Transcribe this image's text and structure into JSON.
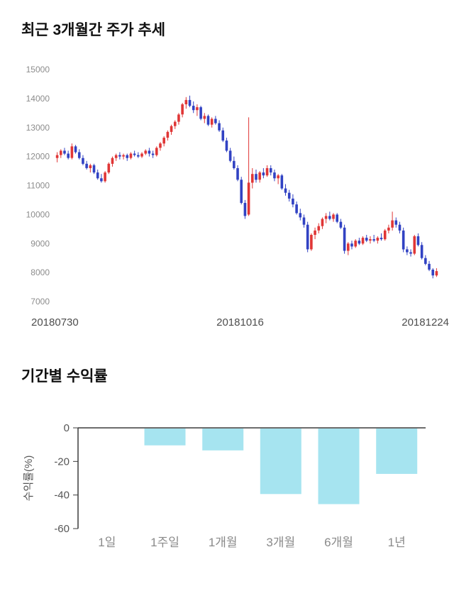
{
  "price_section": {
    "title": "최근 3개월간 주가 추세",
    "x_labels": [
      "20180730",
      "20181016",
      "20181224"
    ]
  },
  "returns_section": {
    "title": "기간별 수익률"
  },
  "chart_data": [
    {
      "type": "candlestick",
      "title": "최근 3개월간 주가 추세",
      "ylim": [
        7000,
        15000
      ],
      "yticks": [
        15000,
        14000,
        13000,
        12000,
        11000,
        10000,
        9000,
        8000,
        7000
      ],
      "x_axis_labels": [
        "20180730",
        "20181016",
        "20181224"
      ],
      "up_color": "#e03636",
      "down_color": "#3142c3",
      "ohlc_format": [
        "open",
        "high",
        "low",
        "close"
      ],
      "ohlc": [
        [
          11950,
          12150,
          11800,
          12050
        ],
        [
          12050,
          12250,
          11950,
          12200
        ],
        [
          12200,
          12300,
          12050,
          12100
        ],
        [
          12100,
          12200,
          11900,
          11950
        ],
        [
          11950,
          12450,
          11900,
          12350
        ],
        [
          12350,
          12400,
          12100,
          12150
        ],
        [
          12150,
          12250,
          11900,
          11950
        ],
        [
          11950,
          12050,
          11700,
          11750
        ],
        [
          11750,
          11850,
          11550,
          11600
        ],
        [
          11600,
          11750,
          11450,
          11700
        ],
        [
          11700,
          11750,
          11400,
          11450
        ],
        [
          11450,
          11550,
          11200,
          11250
        ],
        [
          11250,
          11400,
          11100,
          11150
        ],
        [
          11150,
          11500,
          11100,
          11450
        ],
        [
          11450,
          11800,
          11400,
          11750
        ],
        [
          11750,
          12000,
          11650,
          11950
        ],
        [
          11950,
          12100,
          11850,
          12050
        ],
        [
          12050,
          12150,
          11900,
          12000
        ],
        [
          12000,
          12100,
          11900,
          12050
        ],
        [
          12050,
          12100,
          11850,
          11950
        ],
        [
          11950,
          12150,
          11900,
          12100
        ],
        [
          12100,
          12200,
          12000,
          12050
        ],
        [
          12050,
          12150,
          11950,
          12000
        ],
        [
          12000,
          12150,
          11950,
          12100
        ],
        [
          12100,
          12250,
          12050,
          12200
        ],
        [
          12200,
          12300,
          12000,
          12100
        ],
        [
          12100,
          12200,
          11950,
          12050
        ],
        [
          12050,
          12350,
          12000,
          12300
        ],
        [
          12300,
          12500,
          12200,
          12450
        ],
        [
          12450,
          12700,
          12350,
          12650
        ],
        [
          12650,
          12900,
          12550,
          12850
        ],
        [
          12850,
          13100,
          12750,
          13050
        ],
        [
          13050,
          13250,
          12950,
          13200
        ],
        [
          13200,
          13500,
          13100,
          13450
        ],
        [
          13450,
          13850,
          13350,
          13800
        ],
        [
          13800,
          14050,
          13650,
          13950
        ],
        [
          13950,
          14100,
          13700,
          13750
        ],
        [
          13750,
          13900,
          13500,
          13600
        ],
        [
          13600,
          13800,
          13400,
          13700
        ],
        [
          13700,
          13750,
          13250,
          13300
        ],
        [
          13300,
          13500,
          13150,
          13400
        ],
        [
          13400,
          13450,
          13050,
          13100
        ],
        [
          13100,
          13350,
          13000,
          13300
        ],
        [
          13300,
          13400,
          13100,
          13150
        ],
        [
          13150,
          13250,
          12850,
          12900
        ],
        [
          12900,
          13000,
          12500,
          12550
        ],
        [
          12550,
          12650,
          12150,
          12200
        ],
        [
          12200,
          12300,
          11800,
          11850
        ],
        [
          11850,
          12000,
          11550,
          11600
        ],
        [
          11600,
          11700,
          11150,
          11200
        ],
        [
          11200,
          11300,
          10350,
          10400
        ],
        [
          10400,
          10500,
          9850,
          9950
        ],
        [
          10000,
          13350,
          9950,
          11100
        ],
        [
          11100,
          11600,
          10900,
          11400
        ],
        [
          11400,
          11550,
          11100,
          11200
        ],
        [
          11200,
          11500,
          11100,
          11450
        ],
        [
          11450,
          11600,
          11250,
          11350
        ],
        [
          11350,
          11700,
          11300,
          11600
        ],
        [
          11600,
          11700,
          11350,
          11450
        ],
        [
          11450,
          11550,
          11150,
          11250
        ],
        [
          11250,
          11400,
          11050,
          11350
        ],
        [
          11350,
          11400,
          10850,
          10900
        ],
        [
          10900,
          11050,
          10650,
          10750
        ],
        [
          10750,
          10850,
          10450,
          10550
        ],
        [
          10550,
          10700,
          10250,
          10350
        ],
        [
          10350,
          10450,
          10000,
          10050
        ],
        [
          10050,
          10200,
          9800,
          9900
        ],
        [
          9900,
          10000,
          9550,
          9650
        ],
        [
          9650,
          9750,
          8700,
          8800
        ],
        [
          8800,
          9350,
          8750,
          9300
        ],
        [
          9300,
          9550,
          9150,
          9450
        ],
        [
          9450,
          9700,
          9350,
          9600
        ],
        [
          9600,
          9900,
          9500,
          9850
        ],
        [
          9850,
          10050,
          9700,
          9950
        ],
        [
          9950,
          10100,
          9800,
          9850
        ],
        [
          9850,
          10050,
          9750,
          10000
        ],
        [
          10000,
          10050,
          9700,
          9750
        ],
        [
          9750,
          9850,
          9500,
          9550
        ],
        [
          9550,
          9650,
          8650,
          8750
        ],
        [
          8750,
          9050,
          8600,
          9000
        ],
        [
          9000,
          9100,
          8800,
          8900
        ],
        [
          8900,
          9150,
          8850,
          9100
        ],
        [
          9100,
          9200,
          8950,
          9000
        ],
        [
          9000,
          9250,
          8950,
          9200
        ],
        [
          9200,
          9300,
          9050,
          9100
        ],
        [
          9100,
          9250,
          9000,
          9150
        ],
        [
          9150,
          9300,
          9050,
          9100
        ],
        [
          9100,
          9250,
          9000,
          9200
        ],
        [
          9200,
          9350,
          9100,
          9150
        ],
        [
          9150,
          9500,
          9100,
          9450
        ],
        [
          9450,
          9650,
          9350,
          9550
        ],
        [
          9550,
          10100,
          9450,
          9800
        ],
        [
          9800,
          9900,
          9550,
          9650
        ],
        [
          9650,
          9750,
          9350,
          9450
        ],
        [
          9450,
          9550,
          8700,
          8800
        ],
        [
          8800,
          8900,
          8600,
          8700
        ],
        [
          8700,
          8800,
          8550,
          8650
        ],
        [
          8650,
          9300,
          8600,
          9250
        ],
        [
          9250,
          9350,
          8900,
          8950
        ],
        [
          8950,
          9050,
          8450,
          8500
        ],
        [
          8500,
          8600,
          8250,
          8300
        ],
        [
          8300,
          8400,
          8050,
          8100
        ],
        [
          8100,
          8150,
          7800,
          7900
        ],
        [
          7900,
          8150,
          7850,
          8050
        ]
      ]
    },
    {
      "type": "bar",
      "title": "기간별 수익률",
      "categories": [
        "1일",
        "1주일",
        "1개월",
        "3개월",
        "6개월",
        "1년"
      ],
      "values": [
        0,
        -10,
        -13,
        -39,
        -45,
        -27
      ],
      "ylabel": "수익률(%)",
      "ylim": [
        -60,
        0
      ],
      "yticks": [
        0,
        -20,
        -40,
        -60
      ],
      "bar_color": "#a6e4f0",
      "axis_color": "#3c3c3c"
    }
  ]
}
